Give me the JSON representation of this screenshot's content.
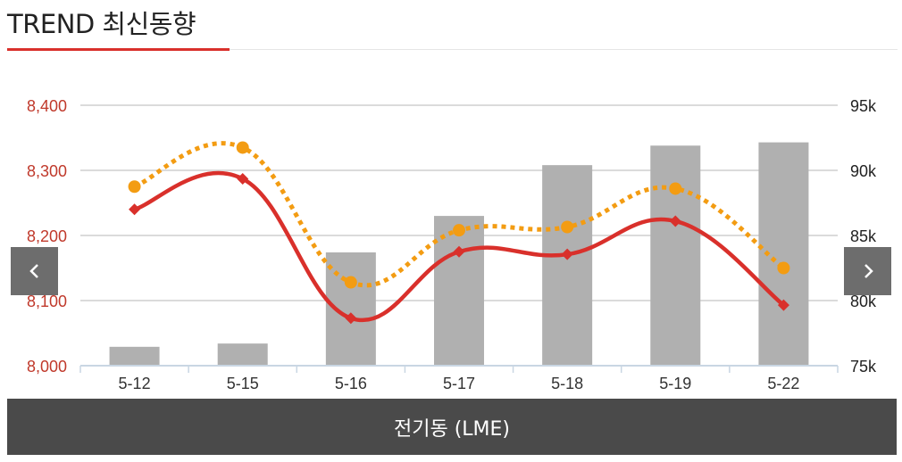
{
  "header": {
    "title": "TREND 최신동향"
  },
  "footer": {
    "label": "전기동 (LME)"
  },
  "nav": {
    "prev_icon": "chevron-left-icon",
    "next_icon": "chevron-right-icon"
  },
  "colors": {
    "accent": "#d9302b",
    "bar": "#b0b0b0",
    "dotted": "#f39c12",
    "axis_left_text": "#c0392b"
  },
  "chart_data": {
    "type": "bar",
    "categories": [
      "5-12",
      "5-15",
      "5-16",
      "5-17",
      "5-18",
      "5-19",
      "5-22"
    ],
    "left_axis": {
      "ticks": [
        "8,000",
        "8,100",
        "8,200",
        "8,300",
        "8,400"
      ],
      "ylim": [
        8000,
        8400
      ]
    },
    "right_axis": {
      "ticks": [
        "75k",
        "80k",
        "85k",
        "90k",
        "95k"
      ],
      "ylim": [
        75000,
        95000
      ]
    },
    "grid": true,
    "series": [
      {
        "kind": "bar",
        "axis": "left",
        "values": [
          8029,
          8034,
          8174,
          8230,
          8308,
          8338,
          8343
        ]
      },
      {
        "kind": "line",
        "axis": "left",
        "style": "solid",
        "color": "#d9302b",
        "marker": "diamond",
        "values": [
          8240,
          8287,
          8073,
          8175,
          8171,
          8222,
          8093
        ]
      },
      {
        "kind": "line",
        "axis": "left",
        "style": "dotted",
        "color": "#f39c12",
        "marker": "circle",
        "values": [
          8275,
          8335,
          8128,
          8208,
          8213,
          8272,
          8150
        ]
      }
    ]
  }
}
